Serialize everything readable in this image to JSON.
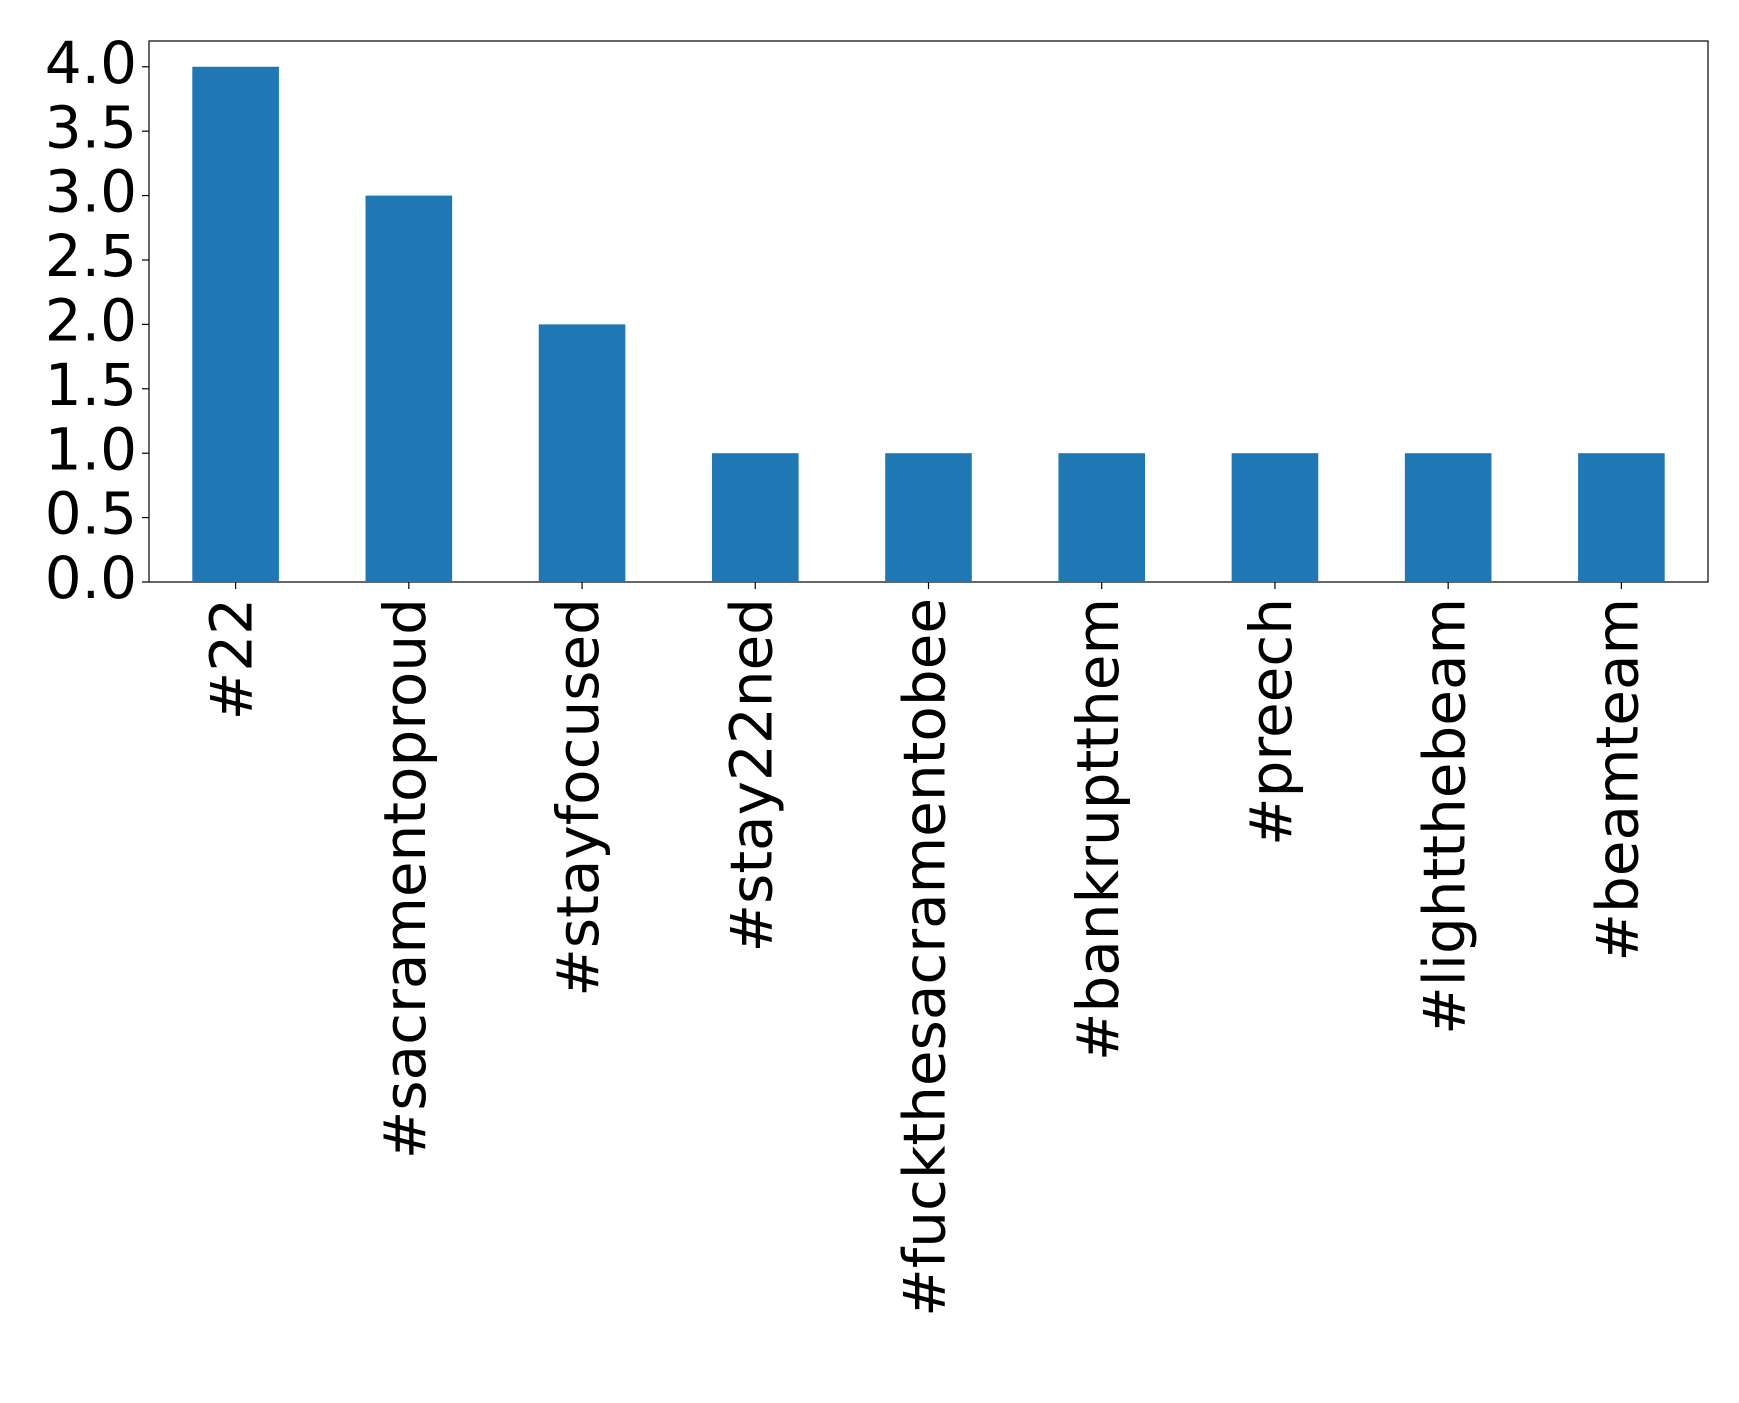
{
  "chart_data": {
    "type": "bar",
    "categories": [
      "#22",
      "#sacramentoproud",
      "#stayfocused",
      "#stay22ned",
      "#fuckthesacramentobee",
      "#bankruptthem",
      "#preech",
      "#lightthebeam",
      "#beamteam"
    ],
    "values": [
      4,
      3,
      2,
      1,
      1,
      1,
      1,
      1,
      1
    ],
    "color": "#1f77b4",
    "ylim": [
      0,
      4.2
    ],
    "yticks": [
      {
        "value": 0,
        "label": "0.0"
      },
      0.5,
      {
        "value": 1,
        "label": "1.0"
      },
      1.5,
      {
        "value": 2,
        "label": "2.0"
      },
      2.5,
      {
        "value": 3,
        "label": "3.0"
      },
      3.5,
      {
        "value": 4,
        "label": "4.0"
      }
    ],
    "grid": false
  }
}
